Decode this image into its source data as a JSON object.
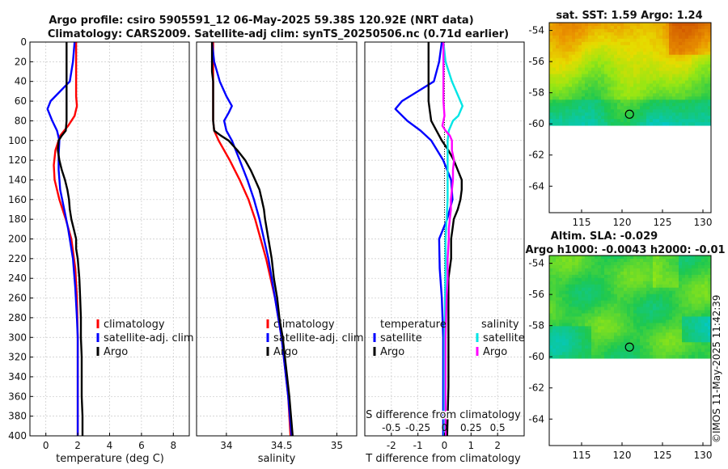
{
  "title": {
    "line1": "Argo profile: csiro 5905591_12 06-May-2025 59.38S 120.92E (NRT data)",
    "line2": "Climatology: CARS2009. Satellite-adj clim: synTS_20250506.nc (0.71d earlier)"
  },
  "watermark": "©IMOS 11-May-2025 11:42:39",
  "chart_data": [
    {
      "id": "temperature",
      "type": "line",
      "xlabel": "temperature (deg C)",
      "ylabel": "",
      "xlim": [
        -1,
        9
      ],
      "ylim": [
        400,
        0
      ],
      "xticks": [
        0,
        2,
        4,
        6,
        8
      ],
      "xtick_labels": [
        "0",
        "2",
        "4",
        "6",
        "8"
      ],
      "yticks": [
        0,
        20,
        40,
        60,
        80,
        100,
        120,
        140,
        160,
        180,
        200,
        220,
        240,
        260,
        280,
        300,
        320,
        340,
        360,
        380,
        400
      ],
      "ytick_labels": [
        "0",
        "20",
        "40",
        "60",
        "80",
        "100",
        "120",
        "140",
        "160",
        "180",
        "200",
        "220",
        "240",
        "260",
        "280",
        "300",
        "320",
        "340",
        "360",
        "380",
        "400"
      ],
      "grid": true,
      "legend": [
        "climatology",
        "satellite-adj. clim",
        "Argo"
      ],
      "legend_position": "lower-right",
      "series": [
        {
          "name": "climatology",
          "color": "#ff0000",
          "depth": [
            0,
            20,
            40,
            55,
            65,
            75,
            85,
            95,
            110,
            125,
            140,
            160,
            180,
            200,
            230,
            260,
            300,
            350,
            400
          ],
          "values": [
            1.9,
            1.9,
            1.9,
            1.9,
            1.95,
            1.8,
            1.4,
            0.9,
            0.6,
            0.5,
            0.55,
            0.85,
            1.25,
            1.6,
            1.85,
            1.95,
            2.0,
            2.0,
            2.0
          ]
        },
        {
          "name": "satellite-adj. clim",
          "color": "#0000ff",
          "depth": [
            0,
            20,
            40,
            50,
            60,
            68,
            80,
            90,
            100,
            115,
            130,
            150,
            170,
            190,
            220,
            250,
            280,
            300,
            340,
            400
          ],
          "values": [
            1.8,
            1.7,
            1.5,
            0.9,
            0.3,
            0.1,
            0.4,
            0.7,
            0.85,
            0.8,
            0.8,
            0.9,
            1.15,
            1.4,
            1.7,
            1.85,
            1.95,
            2.0,
            2.0,
            2.0
          ]
        },
        {
          "name": "Argo",
          "color": "#000000",
          "depth": [
            0,
            20,
            40,
            60,
            80,
            90,
            95,
            100,
            110,
            120,
            130,
            140,
            150,
            160,
            170,
            180,
            190,
            200,
            210,
            220,
            240,
            260,
            280,
            300,
            320,
            340,
            360,
            380,
            400
          ],
          "values": [
            1.3,
            1.3,
            1.3,
            1.3,
            1.3,
            1.25,
            1.0,
            0.8,
            0.75,
            0.85,
            1.0,
            1.2,
            1.35,
            1.45,
            1.5,
            1.6,
            1.75,
            1.9,
            1.9,
            2.0,
            2.1,
            2.15,
            2.2,
            2.2,
            2.25,
            2.25,
            2.25,
            2.3,
            2.3
          ]
        }
      ]
    },
    {
      "id": "salinity",
      "type": "line",
      "xlabel": "salinity",
      "xlim": [
        33.73,
        35.18
      ],
      "ylim": [
        400,
        0
      ],
      "xticks": [
        34,
        34.5,
        35
      ],
      "xtick_labels": [
        "34",
        "34.5",
        "35"
      ],
      "grid": true,
      "legend": [
        "climatology",
        "satellite-adj. clim",
        "Argo"
      ],
      "legend_position": "lower-right",
      "series": [
        {
          "name": "climatology",
          "color": "#ff0000",
          "depth": [
            0,
            20,
            40,
            60,
            80,
            90,
            100,
            120,
            140,
            160,
            180,
            200,
            220,
            240,
            260,
            280,
            300,
            330,
            360,
            400
          ],
          "values": [
            33.88,
            33.88,
            33.88,
            33.88,
            33.88,
            33.89,
            33.93,
            34.03,
            34.12,
            34.2,
            34.26,
            34.31,
            34.36,
            34.4,
            34.44,
            34.47,
            34.5,
            34.53,
            34.56,
            34.58
          ]
        },
        {
          "name": "satellite-adj. clim",
          "color": "#0000ff",
          "depth": [
            0,
            20,
            40,
            55,
            65,
            72,
            80,
            90,
            100,
            120,
            140,
            160,
            180,
            200,
            220,
            240,
            260,
            280,
            300,
            330,
            360,
            400
          ],
          "values": [
            33.87,
            33.89,
            33.94,
            34.0,
            34.05,
            34.02,
            33.98,
            34.0,
            34.05,
            34.12,
            34.19,
            34.25,
            34.3,
            34.34,
            34.38,
            34.41,
            34.44,
            34.47,
            34.5,
            34.53,
            34.56,
            34.59
          ]
        },
        {
          "name": "Argo",
          "color": "#000000",
          "depth": [
            0,
            20,
            30,
            40,
            60,
            80,
            90,
            95,
            100,
            110,
            120,
            130,
            140,
            150,
            160,
            170,
            180,
            200,
            220,
            240,
            260,
            280,
            300,
            330,
            360,
            400
          ],
          "values": [
            33.87,
            33.87,
            33.87,
            33.88,
            33.88,
            33.88,
            33.89,
            33.95,
            34.02,
            34.1,
            34.17,
            34.22,
            34.26,
            34.3,
            34.32,
            34.34,
            34.35,
            34.38,
            34.41,
            34.43,
            34.46,
            34.48,
            34.51,
            34.54,
            34.57,
            34.6
          ]
        }
      ]
    },
    {
      "id": "difference",
      "type": "line",
      "xlabel": "T difference from climatology",
      "x2label": "S difference from climatology",
      "xlim": [
        -3,
        3
      ],
      "ylim": [
        400,
        0
      ],
      "xticks": [
        -2,
        -1,
        0,
        1,
        2
      ],
      "xtick_labels": [
        "-2",
        "-1",
        "0",
        "1",
        "2"
      ],
      "s_ticks": [
        -0.5,
        -0.25,
        0,
        0.25,
        0.5
      ],
      "s_tick_labels": [
        "-0.5",
        "-0.25",
        "0",
        "0.25",
        "0.5"
      ],
      "grid": true,
      "legend_temperature_title": "temperature",
      "legend_salinity_title": "salinity",
      "legend_temperature": [
        "satellite",
        "Argo"
      ],
      "legend_salinity": [
        "satellite",
        "Argo"
      ],
      "series": [
        {
          "name": "T satellite",
          "color": "#0000ff",
          "depth": [
            0,
            20,
            40,
            50,
            60,
            68,
            80,
            90,
            100,
            120,
            140,
            160,
            180,
            200,
            230,
            260,
            300,
            350,
            400
          ],
          "values": [
            -0.1,
            -0.2,
            -0.4,
            -1.0,
            -1.6,
            -1.85,
            -1.4,
            -0.9,
            -0.5,
            -0.05,
            0.25,
            0.3,
            0.1,
            -0.2,
            -0.18,
            -0.1,
            -0.05,
            -0.05,
            -0.05
          ]
        },
        {
          "name": "T Argo",
          "color": "#000000",
          "depth": [
            0,
            20,
            40,
            60,
            70,
            80,
            90,
            100,
            110,
            120,
            130,
            140,
            150,
            160,
            170,
            180,
            190,
            200,
            220,
            240,
            260,
            300,
            350,
            400
          ],
          "values": [
            -0.6,
            -0.6,
            -0.6,
            -0.6,
            -0.55,
            -0.5,
            -0.3,
            -0.1,
            0.15,
            0.35,
            0.5,
            0.65,
            0.65,
            0.6,
            0.5,
            0.35,
            0.3,
            0.25,
            0.25,
            0.15,
            0.15,
            0.15,
            0.15,
            0.1
          ]
        },
        {
          "name": "S satellite",
          "color": "#00e5e5",
          "depth": [
            0,
            20,
            40,
            55,
            65,
            75,
            80,
            90,
            100,
            120,
            140,
            160,
            180,
            200,
            230,
            260,
            300,
            350,
            400
          ],
          "values": [
            -0.01,
            0.01,
            0.07,
            0.13,
            0.17,
            0.13,
            0.08,
            0.04,
            0.03,
            0.03,
            0.03,
            0.03,
            0.02,
            0.01,
            0.01,
            0.005,
            0.0,
            0.0,
            0.0
          ]
        },
        {
          "name": "S Argo",
          "color": "#ff00ff",
          "depth": [
            0,
            40,
            60,
            75,
            85,
            90,
            95,
            100,
            110,
            120,
            130,
            140,
            150,
            160,
            170,
            180,
            190,
            200,
            220,
            240,
            260,
            300,
            350,
            400
          ],
          "values": [
            -0.01,
            -0.01,
            -0.01,
            0.0,
            -0.02,
            0.01,
            0.05,
            0.07,
            0.07,
            0.09,
            0.08,
            0.08,
            0.07,
            0.06,
            0.06,
            0.05,
            0.04,
            0.04,
            0.03,
            0.03,
            0.02,
            0.01,
            0.01,
            0.01
          ]
        }
      ]
    },
    {
      "id": "sst-map",
      "type": "heatmap",
      "title": "sat. SST: 1.59 Argo: 1.24",
      "xlim": [
        111,
        131
      ],
      "ylim": [
        -65.7,
        -53.5
      ],
      "xticks": [
        115,
        120,
        125,
        130
      ],
      "xtick_labels": [
        "115",
        "120",
        "125",
        "130"
      ],
      "yticks": [
        -54,
        -56,
        -58,
        -60,
        -62,
        -64
      ],
      "ytick_labels": [
        "-54",
        "-56",
        "-58",
        "-60",
        "-62",
        "-64"
      ],
      "data_lat_range": [
        -60.1,
        -53.5
      ],
      "marker": {
        "lon": 120.92,
        "lat": -59.38
      }
    },
    {
      "id": "sla-map",
      "type": "heatmap",
      "title": "Altim. SLA: -0.029",
      "subtitle": "Argo h1000: -0.0043 h2000: -0.01",
      "xlim": [
        111,
        131
      ],
      "ylim": [
        -65.7,
        -53.5
      ],
      "xticks": [
        115,
        120,
        125,
        130
      ],
      "xtick_labels": [
        "115",
        "120",
        "125",
        "130"
      ],
      "yticks": [
        -54,
        -56,
        -58,
        -60,
        -62,
        -64
      ],
      "ytick_labels": [
        "-54",
        "-56",
        "-58",
        "-60",
        "-62",
        "-64"
      ],
      "data_lat_range": [
        -60.1,
        -53.5
      ],
      "marker": {
        "lon": 120.92,
        "lat": -59.38
      }
    }
  ]
}
